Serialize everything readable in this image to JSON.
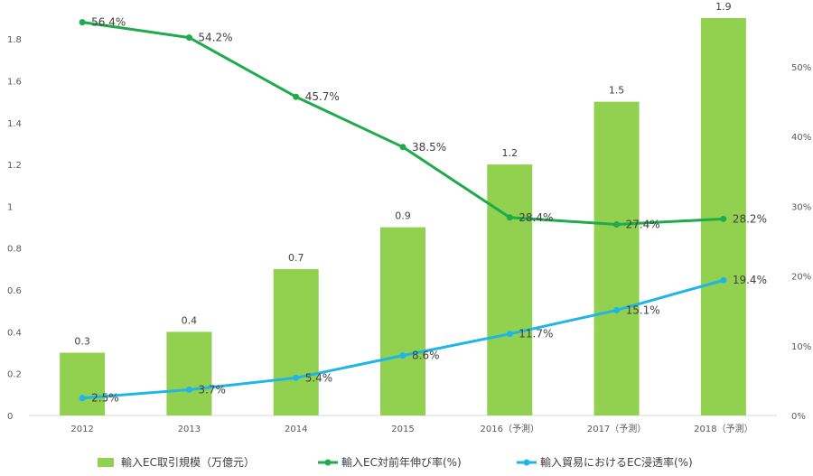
{
  "chart_data": {
    "type": "bar+line",
    "categories": [
      "2012",
      "2013",
      "2014",
      "2015",
      "2016（予測）",
      "2017（予測）",
      "2018（予測）"
    ],
    "bars": {
      "name": "輸入EC取引規模（万億元）",
      "values": [
        0.3,
        0.4,
        0.7,
        0.9,
        1.2,
        1.5,
        1.9
      ],
      "labels": [
        "0.3",
        "0.4",
        "0.7",
        "0.9",
        "1.2",
        "1.5",
        "1.9"
      ],
      "color": "#92d050"
    },
    "series": [
      {
        "name": "輸入EC対前年伸び率(%)",
        "values": [
          56.4,
          54.2,
          45.7,
          38.5,
          28.4,
          27.4,
          28.2
        ],
        "labels": [
          "56.4%",
          "54.2%",
          "45.7%",
          "38.5%",
          "28.4%",
          "27.4%",
          "28.2%"
        ],
        "color": "#1faa4b"
      },
      {
        "name": "輸入貿易におけるEC浸透率(%)",
        "values": [
          2.5,
          3.7,
          5.4,
          8.6,
          11.7,
          15.1,
          19.4
        ],
        "labels": [
          "2.5%",
          "3.7%",
          "5.4%",
          "8.6%",
          "11.7%",
          "15.1%",
          "19.4%"
        ],
        "color": "#1fb5e8"
      }
    ],
    "y_left": {
      "ylim": [
        0,
        1.9
      ],
      "ticks": [
        0,
        0.2,
        0.4,
        0.6,
        0.8,
        1,
        1.2,
        1.4,
        1.6,
        1.8
      ],
      "tick_labels": [
        "0",
        "0.2",
        "0.4",
        "0.6",
        "0.8",
        "1",
        "1.2",
        "1.4",
        "1.6",
        "1.8"
      ]
    },
    "y_right": {
      "ylim": [
        0,
        57
      ],
      "ticks": [
        0,
        10,
        20,
        30,
        40,
        50
      ],
      "tick_labels": [
        "0%",
        "10%",
        "20%",
        "30%",
        "40%",
        "50%"
      ]
    },
    "grid": false,
    "legend": "bottom"
  }
}
